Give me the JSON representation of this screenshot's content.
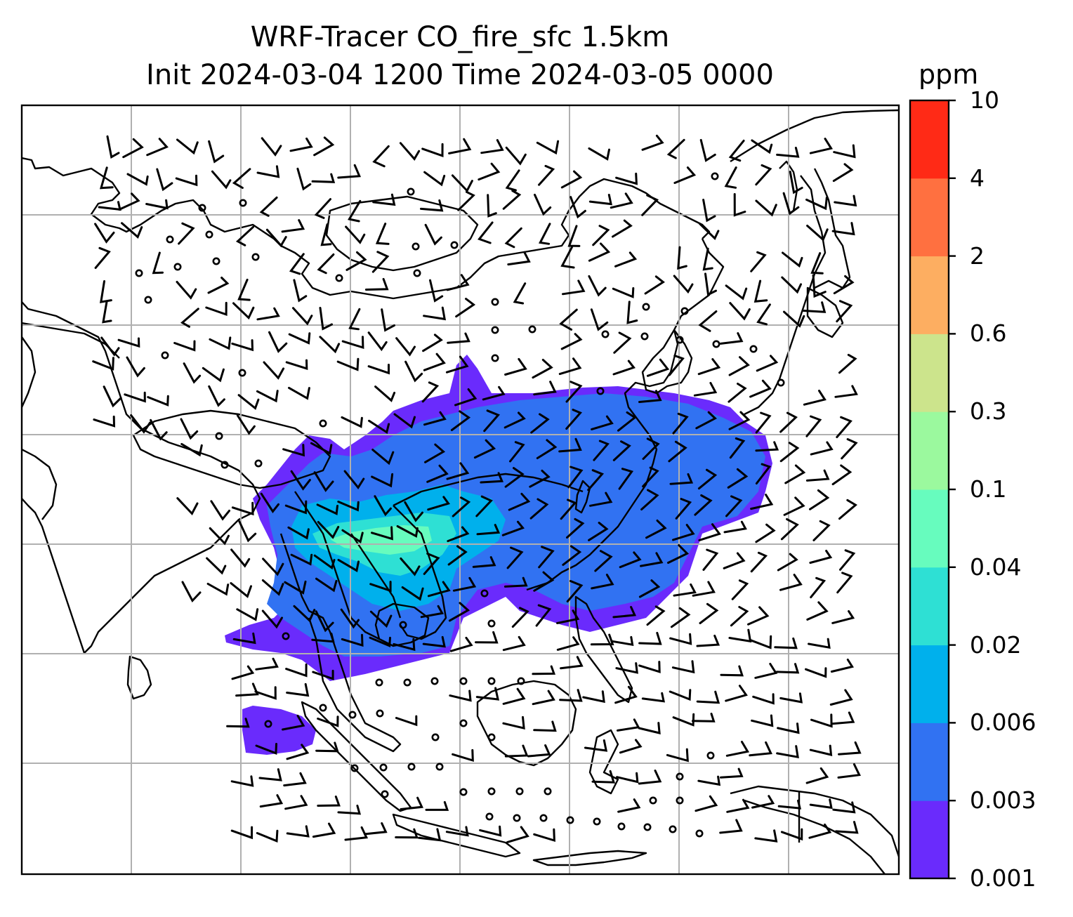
{
  "title": {
    "line1": "WRF-Tracer CO_fire_sfc 1.5km",
    "line2": "Init 2024-03-04 1200 Time 2024-03-05 0000"
  },
  "colorbar": {
    "unit": "ppm",
    "levels": [
      "0.001",
      "0.003",
      "0.006",
      "0.02",
      "0.04",
      "0.1",
      "0.3",
      "0.6",
      "2",
      "4",
      "10"
    ],
    "colors": [
      "#6a2bfc",
      "#3172f2",
      "#00b0ec",
      "#2ee0d4",
      "#67fcbe",
      "#9bf99e",
      "#cce48c",
      "#fdae61",
      "#ff7040",
      "#ff2a16"
    ]
  },
  "map": {
    "field": "CO_fire_sfc",
    "wind_barbs": true,
    "gridlines": true,
    "coastlines": true
  }
}
